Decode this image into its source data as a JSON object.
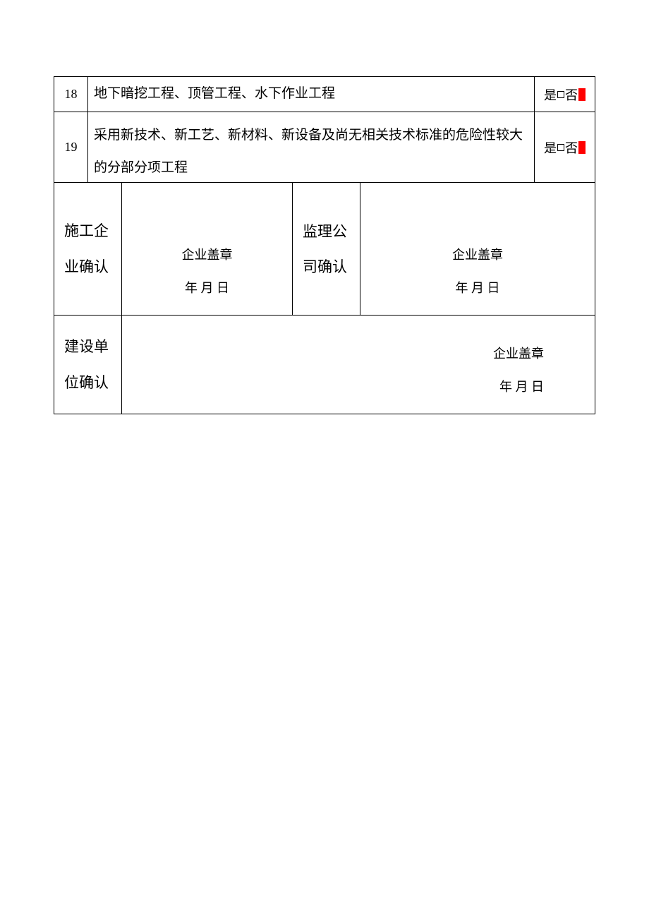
{
  "rows": {
    "r18": {
      "num": "18",
      "desc": "地下暗挖工程、顶管工程、水下作业工程",
      "yes": "是",
      "no": "否"
    },
    "r19": {
      "num": "19",
      "desc": "采用新技术、新工艺、新材料、新设备及尚无相关技术标准的危险性较大的分部分项工程",
      "yes": "是",
      "no": "否"
    }
  },
  "signatures": {
    "construction": {
      "label": "施工企业确认",
      "stamp": "企业盖章",
      "date": "年  月  日"
    },
    "supervision": {
      "label": "监理公司确认",
      "stamp": "企业盖章",
      "date": "年  月  日"
    },
    "owner": {
      "label": "建设单位确认",
      "stamp": "企业盖章",
      "date": "年  月  日"
    }
  },
  "colors": {
    "border": "#000000",
    "highlight": "#ff0000",
    "background": "#ffffff"
  }
}
